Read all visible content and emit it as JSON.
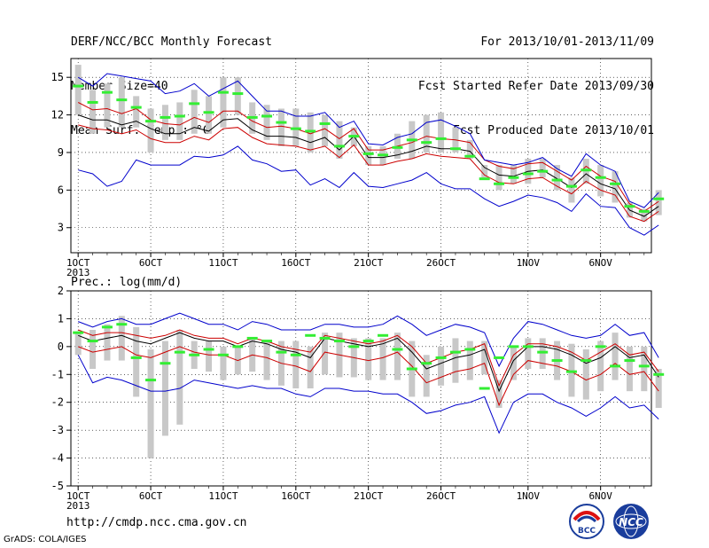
{
  "header": {
    "title": "DERF/NCC/BCC Monthly Forecast",
    "member_size": "Member Size=40",
    "variable": "Mean Surf. Temp.: °C",
    "forecast_period": "For 2013/10/01-2013/11/09",
    "fcst_started": "Fcst Started Refer Date 2013/09/30",
    "fcst_produced": "Fcst Produced Date 2013/10/01"
  },
  "footer": {
    "url": "http://cmdp.ncc.cma.gov.cn",
    "grads": "GrADS: COLA/IGES",
    "logo_left": "BCC",
    "logo_right": "NCC"
  },
  "colors": {
    "ensemble_mean": "#000000",
    "inner_range": "#cc0000",
    "outer_range": "#0000cc",
    "member_box": "#c8c8c8",
    "median_bar": "#33ee33"
  },
  "chart_data": [
    {
      "type": "line",
      "title": "Mean Surf. Temp.: °C",
      "ylim": [
        1,
        16.5
      ],
      "yticks": [
        3,
        6,
        9,
        12,
        15
      ],
      "xlim": [
        0.5,
        40.5
      ],
      "xtick_days": [
        1,
        6,
        11,
        16,
        21,
        26,
        32,
        37
      ],
      "xtick_labels": [
        "1OCT",
        "6OCT",
        "11OCT",
        "16OCT",
        "21OCT",
        "26OCT",
        "1NOV",
        "6NOV"
      ],
      "x_year_label": "2013",
      "grid": true,
      "series": [
        {
          "key": "mean",
          "values": [
            12.0,
            11.6,
            11.6,
            11.2,
            11.5,
            10.9,
            10.5,
            10.5,
            11.0,
            10.7,
            11.6,
            11.7,
            10.8,
            10.3,
            10.3,
            10.2,
            9.8,
            10.2,
            9.2,
            10.3,
            8.6,
            8.6,
            8.8,
            9.1,
            9.5,
            9.3,
            9.3,
            9.1,
            7.8,
            7.2,
            7.1,
            7.5,
            7.6,
            6.9,
            6.2,
            7.3,
            6.5,
            6.1,
            4.4,
            3.9,
            4.7
          ]
        },
        {
          "key": "p_upper",
          "values": [
            13.0,
            12.4,
            12.5,
            12.1,
            12.5,
            11.6,
            11.3,
            11.2,
            11.8,
            11.4,
            12.3,
            12.3,
            11.5,
            11.0,
            11.1,
            10.9,
            10.5,
            10.9,
            10.1,
            10.9,
            9.2,
            9.2,
            9.5,
            9.8,
            10.3,
            10.1,
            10.0,
            9.8,
            8.4,
            7.9,
            7.7,
            8.1,
            8.2,
            7.5,
            6.8,
            7.9,
            7.1,
            6.7,
            4.9,
            4.3,
            5.1
          ]
        },
        {
          "key": "p_lower",
          "values": [
            11.2,
            10.9,
            10.8,
            10.5,
            10.8,
            10.1,
            9.8,
            9.8,
            10.3,
            10.0,
            10.9,
            11.0,
            10.2,
            9.7,
            9.6,
            9.5,
            9.2,
            9.5,
            8.6,
            9.6,
            8.0,
            8.0,
            8.3,
            8.5,
            8.9,
            8.7,
            8.6,
            8.5,
            7.2,
            6.6,
            6.5,
            6.9,
            7.0,
            6.3,
            5.7,
            6.7,
            6.0,
            5.6,
            3.9,
            3.5,
            4.3
          ]
        },
        {
          "key": "max",
          "values": [
            15.0,
            14.3,
            15.3,
            15.1,
            14.9,
            14.7,
            13.7,
            13.9,
            14.5,
            13.5,
            14.1,
            14.7,
            13.5,
            12.3,
            12.3,
            11.9,
            11.9,
            12.2,
            11.0,
            11.5,
            9.7,
            9.6,
            10.2,
            10.5,
            11.4,
            11.6,
            11.1,
            10.5,
            8.4,
            8.2,
            8.0,
            8.2,
            8.6,
            7.7,
            7.1,
            8.9,
            8.0,
            7.5,
            5.1,
            4.6,
            5.8
          ]
        },
        {
          "key": "min",
          "values": [
            7.6,
            7.3,
            6.3,
            6.7,
            8.4,
            8.0,
            8.0,
            8.0,
            8.7,
            8.6,
            8.8,
            9.5,
            8.4,
            8.1,
            7.5,
            7.6,
            6.4,
            6.9,
            6.2,
            7.4,
            6.3,
            6.2,
            6.5,
            6.8,
            7.4,
            6.5,
            6.1,
            6.1,
            5.3,
            4.7,
            5.1,
            5.6,
            5.4,
            5.0,
            4.3,
            5.7,
            4.7,
            4.6,
            3.0,
            2.4,
            3.2
          ]
        }
      ],
      "boxes": {
        "high": [
          16.0,
          14.0,
          14.5,
          15.0,
          13.5,
          12.5,
          12.8,
          13.0,
          14.0,
          13.5,
          15.0,
          15.0,
          13.0,
          12.8,
          12.5,
          12.5,
          12.2,
          12.0,
          11.5,
          11.0,
          9.5,
          9.5,
          10.5,
          11.5,
          12.0,
          12.2,
          11.0,
          10.0,
          8.0,
          8.0,
          8.0,
          8.5,
          8.5,
          8.0,
          7.0,
          8.5,
          8.0,
          7.5,
          5.0,
          4.5,
          6.0
        ],
        "low": [
          12.0,
          10.5,
          11.0,
          11.0,
          11.0,
          9.0,
          10.0,
          10.0,
          10.5,
          10.5,
          11.0,
          12.0,
          10.5,
          10.0,
          9.5,
          9.5,
          9.0,
          9.5,
          8.5,
          9.5,
          8.0,
          8.0,
          8.5,
          8.5,
          9.0,
          9.0,
          9.0,
          8.5,
          7.0,
          6.0,
          6.5,
          6.5,
          7.0,
          6.0,
          5.0,
          6.5,
          5.5,
          5.0,
          3.8,
          3.5,
          4.0
        ],
        "median": [
          14.3,
          13.0,
          13.8,
          13.2,
          12.6,
          11.5,
          11.8,
          11.9,
          12.9,
          12.2,
          13.8,
          13.7,
          11.8,
          11.9,
          11.4,
          10.9,
          10.7,
          11.3,
          9.5,
          10.3,
          8.9,
          8.8,
          9.4,
          10.0,
          9.8,
          10.1,
          9.3,
          8.7,
          6.9,
          6.5,
          7.0,
          7.3,
          7.5,
          6.8,
          6.3,
          7.6,
          7.0,
          6.5,
          4.7,
          4.3,
          5.3
        ]
      }
    },
    {
      "type": "line",
      "title": "Prec.: log(mm/d)",
      "ylim": [
        -5,
        2
      ],
      "yticks": [
        -5,
        -4,
        -3,
        -2,
        -1,
        0,
        1,
        2
      ],
      "xlim": [
        0.5,
        40.5
      ],
      "xtick_days": [
        1,
        6,
        11,
        16,
        21,
        26,
        32,
        37
      ],
      "xtick_labels": [
        "1OCT",
        "6OCT",
        "11OCT",
        "16OCT",
        "21OCT",
        "26OCT",
        "1NOV",
        "6NOV"
      ],
      "x_year_label": "2013",
      "grid": true,
      "series": [
        {
          "key": "mean",
          "values": [
            0.4,
            0.2,
            0.3,
            0.4,
            0.2,
            0.1,
            0.3,
            0.5,
            0.3,
            0.2,
            0.2,
            0.0,
            0.2,
            0.1,
            -0.1,
            -0.2,
            -0.4,
            0.3,
            0.2,
            0.1,
            0.0,
            0.1,
            0.3,
            -0.2,
            -0.8,
            -0.6,
            -0.4,
            -0.3,
            -0.1,
            -1.6,
            -0.5,
            0.0,
            0.0,
            -0.1,
            -0.3,
            -0.6,
            -0.4,
            0.0,
            -0.4,
            -0.3,
            -1.1
          ]
        },
        {
          "key": "p_upper",
          "values": [
            0.6,
            0.4,
            0.5,
            0.5,
            0.4,
            0.3,
            0.4,
            0.6,
            0.4,
            0.3,
            0.3,
            0.1,
            0.3,
            0.2,
            0.0,
            -0.1,
            -0.2,
            0.4,
            0.3,
            0.2,
            0.1,
            0.2,
            0.4,
            0.0,
            -0.6,
            -0.4,
            -0.2,
            -0.1,
            0.1,
            -1.4,
            -0.3,
            0.1,
            0.1,
            0.0,
            -0.2,
            -0.5,
            -0.2,
            0.1,
            -0.3,
            -0.2,
            -0.9
          ]
        },
        {
          "key": "p_lower",
          "values": [
            0.0,
            -0.2,
            -0.1,
            0.0,
            -0.3,
            -0.4,
            -0.2,
            0.0,
            -0.2,
            -0.3,
            -0.3,
            -0.5,
            -0.3,
            -0.4,
            -0.6,
            -0.7,
            -0.9,
            -0.2,
            -0.3,
            -0.4,
            -0.5,
            -0.4,
            -0.2,
            -0.7,
            -1.3,
            -1.1,
            -0.9,
            -0.8,
            -0.6,
            -2.1,
            -1.0,
            -0.5,
            -0.6,
            -0.7,
            -0.9,
            -1.2,
            -1.0,
            -0.6,
            -1.0,
            -0.9,
            -1.6
          ]
        },
        {
          "key": "max",
          "values": [
            0.9,
            0.7,
            0.9,
            1.0,
            0.8,
            0.8,
            1.0,
            1.2,
            1.0,
            0.8,
            0.8,
            0.6,
            0.9,
            0.8,
            0.6,
            0.6,
            0.6,
            0.8,
            0.8,
            0.7,
            0.7,
            0.8,
            1.1,
            0.8,
            0.4,
            0.6,
            0.8,
            0.7,
            0.5,
            -0.7,
            0.3,
            0.9,
            0.8,
            0.6,
            0.4,
            0.3,
            0.4,
            0.8,
            0.4,
            0.5,
            -0.4
          ]
        },
        {
          "key": "min",
          "values": [
            -0.3,
            -1.3,
            -1.1,
            -1.2,
            -1.4,
            -1.6,
            -1.6,
            -1.5,
            -1.2,
            -1.3,
            -1.4,
            -1.5,
            -1.4,
            -1.5,
            -1.5,
            -1.7,
            -1.8,
            -1.5,
            -1.5,
            -1.6,
            -1.6,
            -1.7,
            -1.7,
            -2.0,
            -2.4,
            -2.3,
            -2.1,
            -2.0,
            -1.8,
            -3.1,
            -2.0,
            -1.7,
            -1.7,
            -2.0,
            -2.2,
            -2.5,
            -2.2,
            -1.8,
            -2.2,
            -2.1,
            -2.6
          ]
        }
      ],
      "boxes": {
        "high": [
          0.5,
          0.6,
          0.8,
          1.1,
          0.7,
          -0.1,
          0.2,
          0.6,
          0.2,
          0.2,
          0.0,
          0.0,
          0.3,
          0.2,
          0.2,
          0.2,
          0.0,
          0.5,
          0.5,
          0.3,
          0.3,
          0.3,
          0.5,
          0.2,
          -0.3,
          0.0,
          0.3,
          0.2,
          0.2,
          -1.2,
          0.0,
          0.3,
          0.3,
          0.2,
          0.1,
          -0.1,
          0.2,
          0.5,
          0.0,
          0.0,
          -0.8
        ],
        "low": [
          -0.3,
          -0.8,
          -0.5,
          -0.5,
          -1.8,
          -4.0,
          -3.2,
          -2.8,
          -0.8,
          -0.9,
          -1.2,
          -1.0,
          -0.9,
          -1.2,
          -1.4,
          -1.5,
          -1.5,
          -1.0,
          -1.1,
          -1.1,
          -1.2,
          -1.2,
          -1.2,
          -1.8,
          -1.8,
          -1.4,
          -1.3,
          -1.2,
          -1.0,
          -2.2,
          -1.2,
          -0.8,
          -0.8,
          -1.2,
          -1.8,
          -1.9,
          -1.6,
          -1.2,
          -1.6,
          -1.6,
          -2.2
        ],
        "median": [
          0.5,
          0.2,
          0.7,
          0.8,
          -0.4,
          -1.2,
          -0.6,
          -0.2,
          -0.3,
          -0.1,
          -0.3,
          0.0,
          0.3,
          0.2,
          -0.2,
          -0.3,
          0.4,
          0.3,
          0.2,
          0.0,
          0.2,
          0.4,
          -0.1,
          -0.8,
          -0.6,
          -0.4,
          -0.2,
          -0.1,
          -1.5,
          -0.4,
          0.0,
          0.0,
          -0.2,
          -0.5,
          -0.9,
          -0.5,
          0.0,
          -0.7,
          -0.5,
          -0.7,
          -1.0
        ]
      }
    }
  ],
  "panel2_label": "Prec.: log(mm/d)"
}
